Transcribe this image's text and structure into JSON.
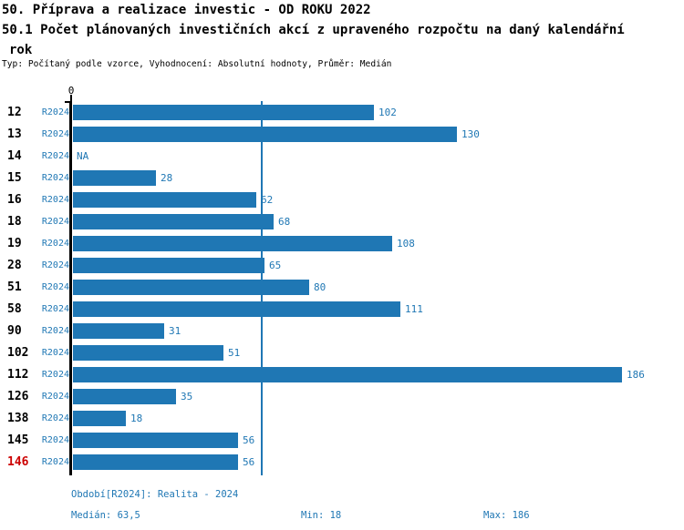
{
  "header": {
    "title_line1": "50. Příprava a realizace investic - OD ROKU 2022",
    "title_line2": "50.1 Počet plánovaných investičních akcí z upraveného rozpočtu na daný kalendářní",
    "title_line3": "rok",
    "meta_line": "Typ: Počítaný podle vzorce, Vyhodnocení: Absolutní hodnoty, Průměr: Medián"
  },
  "colors": {
    "bar_blue": "#1f77b4",
    "label_blue": "#1f77b4",
    "highlight_red": "#cc0000",
    "axis_black": "#000000",
    "background": "#ffffff"
  },
  "chart_data": {
    "type": "bar",
    "orientation": "horizontal",
    "title": "50.1 Počet plánovaných investičních akcí z upraveného rozpočtu na daný kalendářní rok",
    "x_axis": {
      "zero_label": "0",
      "xlim": [
        0,
        206
      ],
      "median_line": 63.5,
      "grid": false
    },
    "period_label": "R2024",
    "na_label": "NA",
    "legend_position": "none",
    "categories": [
      "12",
      "13",
      "14",
      "15",
      "16",
      "18",
      "19",
      "28",
      "51",
      "58",
      "90",
      "102",
      "112",
      "126",
      "138",
      "145",
      "146"
    ],
    "values": [
      102,
      130,
      null,
      28,
      62,
      68,
      108,
      65,
      80,
      111,
      31,
      51,
      186,
      35,
      18,
      56,
      56
    ],
    "rows": [
      {
        "category": "12",
        "period": "R2024",
        "value": 102,
        "highlight": false
      },
      {
        "category": "13",
        "period": "R2024",
        "value": 130,
        "highlight": false
      },
      {
        "category": "14",
        "period": "R2024",
        "value": null,
        "highlight": false
      },
      {
        "category": "15",
        "period": "R2024",
        "value": 28,
        "highlight": false
      },
      {
        "category": "16",
        "period": "R2024",
        "value": 62,
        "highlight": false
      },
      {
        "category": "18",
        "period": "R2024",
        "value": 68,
        "highlight": false
      },
      {
        "category": "19",
        "period": "R2024",
        "value": 108,
        "highlight": false
      },
      {
        "category": "28",
        "period": "R2024",
        "value": 65,
        "highlight": false
      },
      {
        "category": "51",
        "period": "R2024",
        "value": 80,
        "highlight": false
      },
      {
        "category": "58",
        "period": "R2024",
        "value": 111,
        "highlight": false
      },
      {
        "category": "90",
        "period": "R2024",
        "value": 31,
        "highlight": false
      },
      {
        "category": "102",
        "period": "R2024",
        "value": 51,
        "highlight": false
      },
      {
        "category": "112",
        "period": "R2024",
        "value": 186,
        "highlight": false
      },
      {
        "category": "126",
        "period": "R2024",
        "value": 35,
        "highlight": false
      },
      {
        "category": "138",
        "period": "R2024",
        "value": 18,
        "highlight": false
      },
      {
        "category": "145",
        "period": "R2024",
        "value": 56,
        "highlight": false
      },
      {
        "category": "146",
        "period": "R2024",
        "value": 56,
        "highlight": true
      }
    ],
    "stats": {
      "median": "63,5",
      "min": 18,
      "max": 186
    }
  },
  "footer": {
    "period_line": "Období[R2024]: Realita - 2024",
    "median_label": "Medián: 63,5",
    "min_label": "Min: 18",
    "max_label": "Max: 186"
  }
}
